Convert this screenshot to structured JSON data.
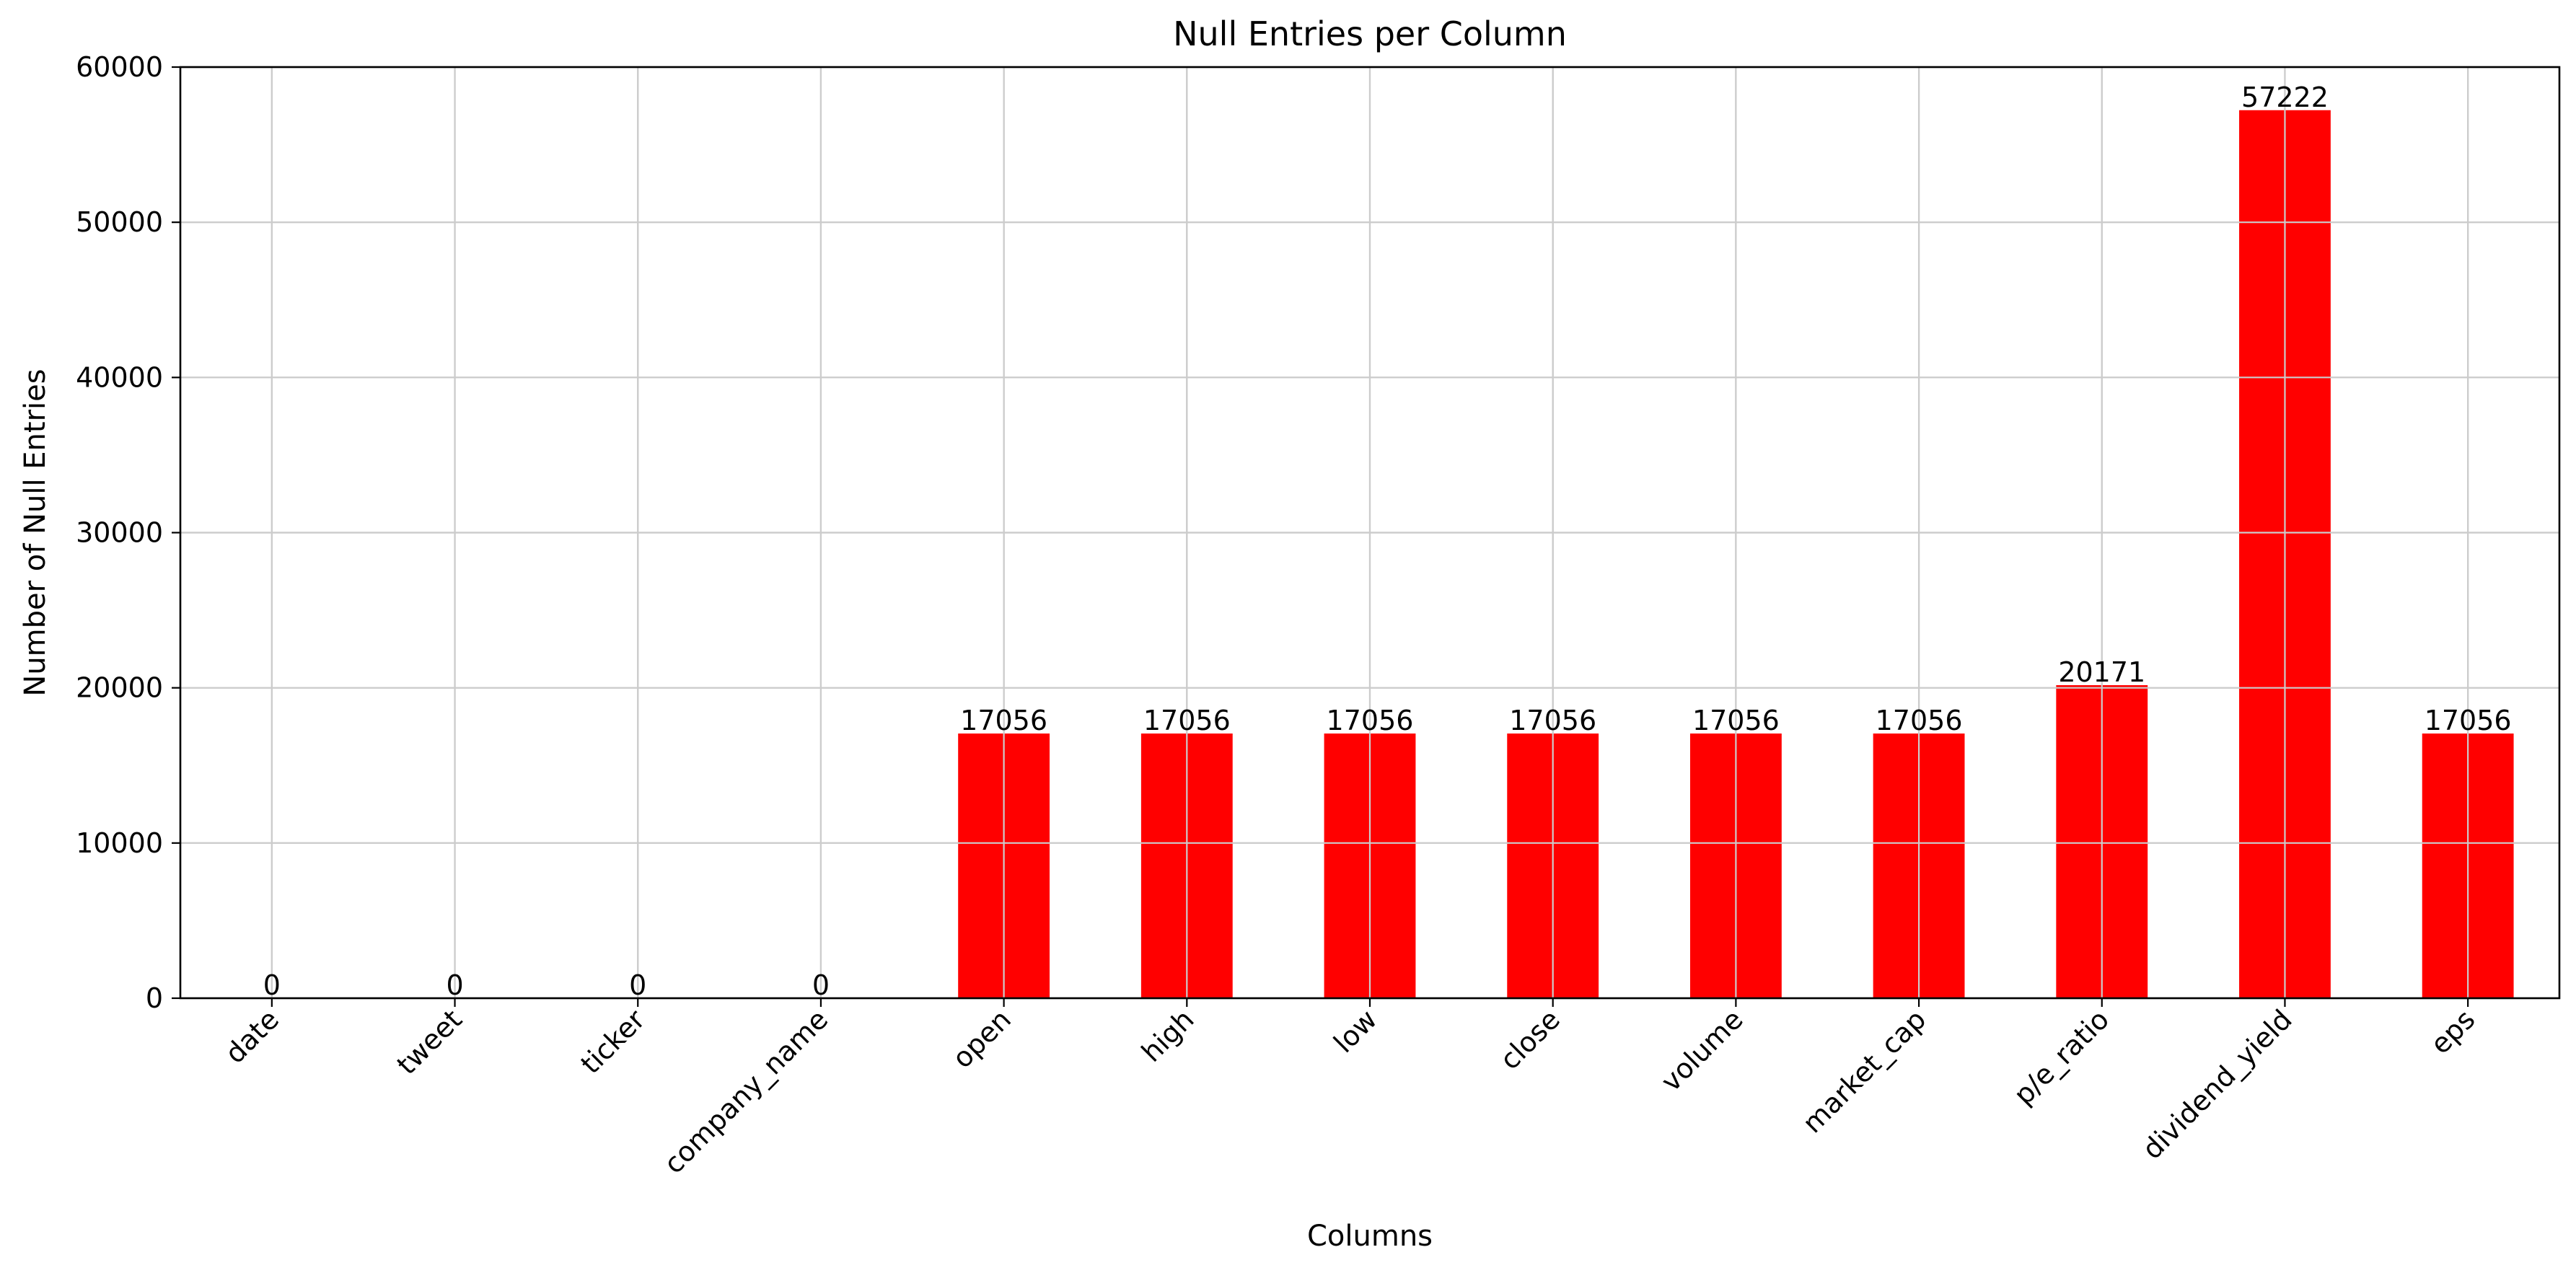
{
  "colors": {
    "bar": "#ff0000",
    "grid": "#cccccc",
    "axis": "#000000",
    "background": "#ffffff"
  },
  "chart_data": {
    "type": "bar",
    "title": "Null Entries per Column",
    "xlabel": "Columns",
    "ylabel": "Number of Null Entries",
    "categories": [
      "date",
      "tweet",
      "ticker",
      "company_name",
      "open",
      "high",
      "low",
      "close",
      "volume",
      "market_cap",
      "p/e_ratio",
      "dividend_yield",
      "eps"
    ],
    "values": [
      0,
      0,
      0,
      0,
      17056,
      17056,
      17056,
      17056,
      17056,
      17056,
      20171,
      57222,
      17056
    ],
    "data_labels": [
      "0",
      "0",
      "0",
      "0",
      "17056",
      "17056",
      "17056",
      "17056",
      "17056",
      "17056",
      "20171",
      "57222",
      "17056"
    ],
    "ylim": [
      0,
      60000
    ],
    "yticks": [
      0,
      10000,
      20000,
      30000,
      40000,
      50000,
      60000
    ],
    "ytick_labels": [
      "0",
      "10000",
      "20000",
      "30000",
      "40000",
      "50000",
      "60000"
    ],
    "grid": true,
    "legend": "none"
  }
}
